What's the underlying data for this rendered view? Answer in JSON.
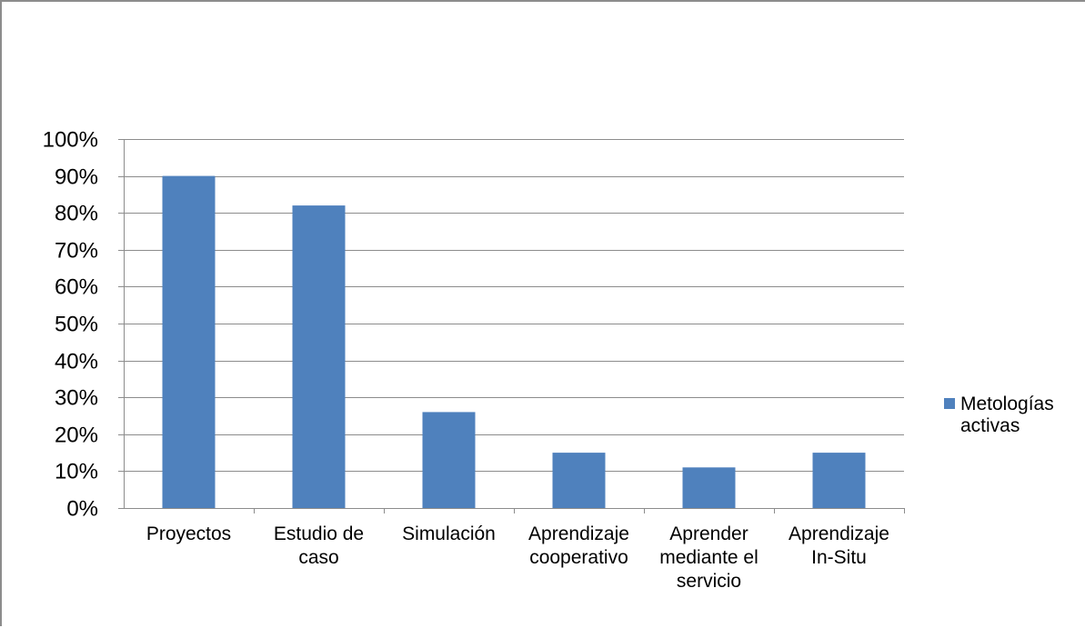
{
  "chart_data": {
    "type": "bar",
    "categories": [
      "Proyectos",
      "Estudio de caso",
      "Simulación",
      "Aprendizaje cooperativo",
      "Aprender mediante el servicio",
      "Aprendizaje In-Situ"
    ],
    "category_label_lines": [
      [
        "Proyectos"
      ],
      [
        "Estudio de",
        "caso"
      ],
      [
        "Simulación"
      ],
      [
        "Aprendizaje",
        "cooperativo"
      ],
      [
        "Aprender",
        "mediante el",
        "servicio"
      ],
      [
        "Aprendizaje",
        "In-Situ"
      ]
    ],
    "series": [
      {
        "name": "Metologías activas",
        "values": [
          90,
          82,
          26,
          15,
          11,
          15
        ],
        "color": "#4f81bd"
      }
    ],
    "legend_lines": [
      "Metologías",
      "activas"
    ],
    "y_ticks": [
      "0%",
      "10%",
      "20%",
      "30%",
      "40%",
      "50%",
      "60%",
      "70%",
      "80%",
      "90%",
      "100%"
    ],
    "ylim": [
      0,
      100
    ],
    "y_unit": "%",
    "grid": true,
    "legend_position": "right",
    "title": "",
    "xlabel": "",
    "ylabel": ""
  },
  "colors": {
    "bar": "#4f81bd",
    "gridline": "#8c8c8c",
    "frame": "#8c8c8c"
  }
}
